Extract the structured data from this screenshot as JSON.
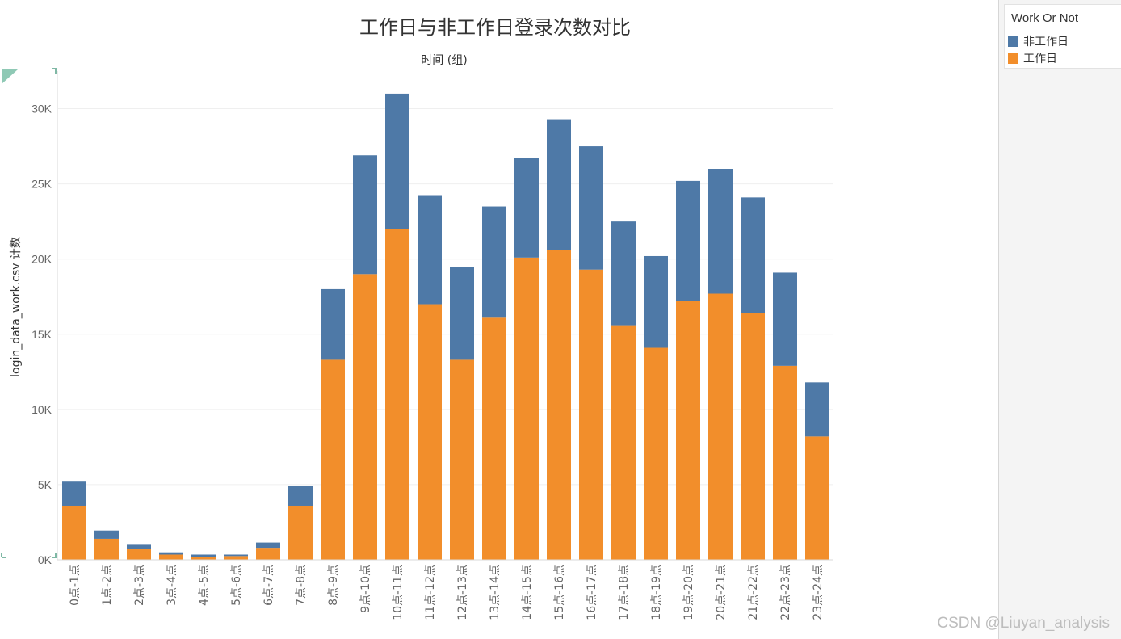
{
  "chart_data": {
    "type": "bar",
    "stacked": true,
    "title": "工作日与非工作日登录次数对比",
    "subtitle": "时间 (组)",
    "ylabel": "login_data_work.csv 计数",
    "ylim": [
      0,
      32500
    ],
    "yticks": [
      0,
      5000,
      10000,
      15000,
      20000,
      25000,
      30000
    ],
    "ytick_labels": [
      "0K",
      "5K",
      "10K",
      "15K",
      "20K",
      "25K",
      "30K"
    ],
    "categories": [
      "0点-1点",
      "1点-2点",
      "2点-3点",
      "3点-4点",
      "4点-5点",
      "5点-6点",
      "6点-7点",
      "7点-8点",
      "8点-9点",
      "9点-10点",
      "10点-11点",
      "11点-12点",
      "12点-13点",
      "13点-14点",
      "14点-15点",
      "15点-16点",
      "16点-17点",
      "17点-18点",
      "18点-19点",
      "19点-20点",
      "20点-21点",
      "21点-22点",
      "22点-23点",
      "23点-24点"
    ],
    "series": [
      {
        "name": "工作日",
        "color": "#f28e2b",
        "values": [
          3600,
          1400,
          700,
          350,
          200,
          250,
          800,
          3600,
          13300,
          19000,
          22000,
          17000,
          13300,
          16100,
          20100,
          20600,
          19300,
          15600,
          14100,
          17200,
          17700,
          16400,
          12900,
          8200
        ]
      },
      {
        "name": "非工作日",
        "color": "#4e79a7",
        "values": [
          1600,
          550,
          300,
          150,
          150,
          100,
          350,
          1300,
          4700,
          7900,
          9000,
          7200,
          6200,
          7400,
          6600,
          8700,
          8200,
          6900,
          6100,
          8000,
          8300,
          7700,
          6200,
          3600
        ]
      }
    ]
  },
  "legend": {
    "title": "Work Or Not",
    "items": [
      {
        "label": "非工作日",
        "color": "#4e79a7"
      },
      {
        "label": "工作日",
        "color": "#f28e2b"
      }
    ]
  },
  "watermark": "CSDN @Liuyan_analysis"
}
